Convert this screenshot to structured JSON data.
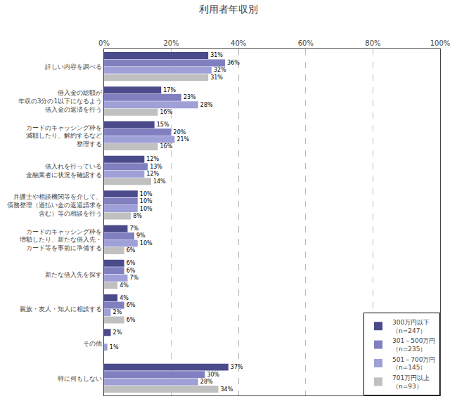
{
  "chart_data": {
    "type": "bar",
    "orientation": "horizontal",
    "title": "利用者年収別",
    "categories": [
      "詳しい内容を調べる",
      "借入金の総額が\n年収の3分の1以下になるよう\n借入金の返済を行う",
      "カードのキャッシング枠を\n減額したり、解約するなど\n整理する",
      "借入れを行っている\n金融業者に状況を確認する",
      "弁護士や相談機関等を介して、\n債務整理（過払い金の返還請求を\n含む）等の相談を行う",
      "カードのキャッシング枠を\n増額したり、新たな借入先・\nカード等を事前に準備する",
      "新たな借入先を探す",
      "親族・友人・知人に相談する",
      "その他",
      "特に何もしない"
    ],
    "series": [
      {
        "name": "300万円以下\n（n=247）",
        "color": "#4b4b8c",
        "values": [
          31,
          17,
          15,
          12,
          10,
          7,
          6,
          4,
          2,
          37
        ],
        "value_labels": [
          "31%",
          "17%",
          "15%",
          "12%",
          "10%",
          "7%",
          "6%",
          "4%",
          "2%",
          "37%"
        ]
      },
      {
        "name": "301～500万円\n（n=235）",
        "color": "#8080c0",
        "values": [
          36,
          23,
          20,
          13,
          10,
          9,
          6,
          6,
          0,
          30
        ],
        "value_labels": [
          "36%",
          "23%",
          "20%",
          "13%",
          "10%",
          "9%",
          "6%",
          "6%",
          null,
          "30%"
        ]
      },
      {
        "name": "501～700万円\n（n=145）",
        "color": "#a0a0d8",
        "values": [
          32,
          28,
          21,
          12,
          10,
          10,
          7,
          2,
          1,
          28
        ],
        "value_labels": [
          "32%",
          "28%",
          "21%",
          "12%",
          "10%",
          "10%",
          "7%",
          "2%",
          "1%",
          "28%"
        ]
      },
      {
        "name": "701万円以上\n（n=93）",
        "color": "#c0c0c0",
        "values": [
          31,
          16,
          16,
          14,
          8,
          6,
          4,
          6,
          0,
          34
        ],
        "value_labels": [
          "31%",
          "16%",
          "16%",
          "14%",
          "8%",
          "6%",
          "4%",
          "6%",
          null,
          "34%"
        ]
      }
    ],
    "xlim": [
      0,
      100
    ],
    "xticks": [
      {
        "value": 0,
        "label": "0%"
      },
      {
        "value": 20,
        "label": "20%"
      },
      {
        "value": 40,
        "label": "40%"
      },
      {
        "value": 60,
        "label": "60%"
      },
      {
        "value": 80,
        "label": "80%"
      },
      {
        "value": 100,
        "label": "100%"
      }
    ],
    "grid": true,
    "legend": "lower right",
    "data_labels": true
  }
}
